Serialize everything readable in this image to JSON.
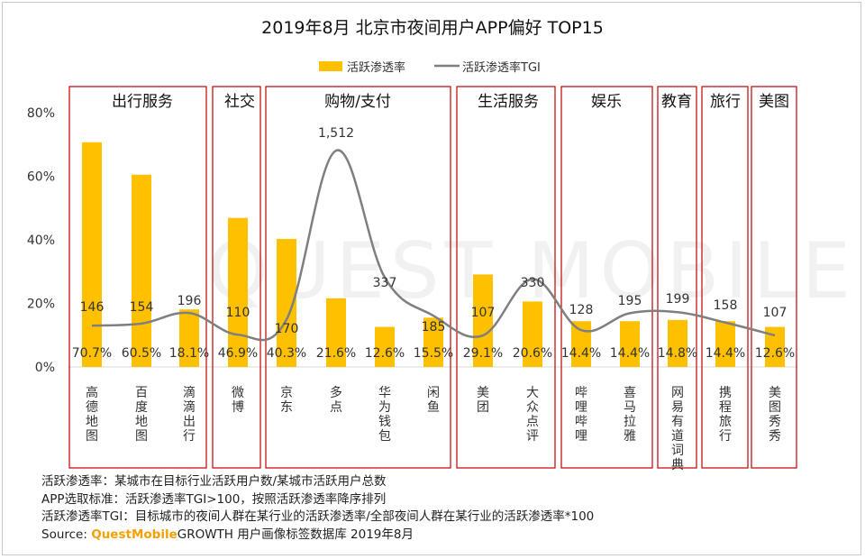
{
  "chart_data": {
    "type": "bar+line",
    "title": "2019年8月 北京市夜间用户APP偏好 TOP15",
    "legend": [
      "活跃渗透率",
      "活跃渗透率TGI"
    ],
    "legend_position": "top-center",
    "y_axis": {
      "ticks": [
        "0%",
        "20%",
        "40%",
        "60%",
        "80%"
      ],
      "ylim": [
        0,
        80
      ],
      "unit": "%"
    },
    "grid": false,
    "colors": {
      "bar": "#ffc000",
      "line": "#7f7f7f",
      "group_border": "#c00000"
    },
    "groups": [
      {
        "name": "出行服务",
        "apps": [
          "高德地图",
          "百度地图",
          "滴滴出行"
        ]
      },
      {
        "name": "社交",
        "apps": [
          "微博"
        ]
      },
      {
        "name": "购物/支付",
        "apps": [
          "京东",
          "多点",
          "华为钱包",
          "闲鱼"
        ]
      },
      {
        "name": "生活服务",
        "apps": [
          "美团",
          "大众点评"
        ]
      },
      {
        "name": "娱乐",
        "apps": [
          "哔哩哔哩",
          "喜马拉雅"
        ]
      },
      {
        "name": "教育",
        "apps": [
          "网易有道词典"
        ]
      },
      {
        "name": "旅行",
        "apps": [
          "携程旅行"
        ]
      },
      {
        "name": "美图",
        "apps": [
          "美图秀秀"
        ]
      }
    ],
    "categories": [
      "高德地图",
      "百度地图",
      "滴滴出行",
      "微博",
      "京东",
      "多点",
      "华为钱包",
      "闲鱼",
      "美团",
      "大众点评",
      "哔哩哔哩",
      "喜马拉雅",
      "网易有道词典",
      "携程旅行",
      "美图秀秀"
    ],
    "series": [
      {
        "name": "活跃渗透率",
        "type": "bar",
        "values": [
          70.7,
          60.5,
          18.1,
          46.9,
          40.3,
          21.6,
          12.6,
          15.5,
          29.1,
          20.6,
          14.4,
          14.4,
          14.8,
          14.4,
          12.6
        ],
        "labels": [
          "70.7%",
          "60.5%",
          "18.1%",
          "46.9%",
          "40.3%",
          "21.6%",
          "12.6%",
          "15.5%",
          "29.1%",
          "20.6%",
          "14.4%",
          "14.4%",
          "14.8%",
          "14.4%",
          "12.6%"
        ]
      },
      {
        "name": "活跃渗透率TGI",
        "type": "line",
        "values": [
          146,
          154,
          196,
          110,
          170,
          1512,
          337,
          185,
          107,
          330,
          128,
          195,
          199,
          158,
          107
        ],
        "labels": [
          "146",
          "154",
          "196",
          "110",
          "170",
          "1,512",
          "337",
          "185",
          "107",
          "330",
          "128",
          "195",
          "199",
          "158",
          "107"
        ]
      }
    ]
  },
  "watermark": "QUEST MOBILE",
  "notes": {
    "line1": "活跃渗透率：某城市在目标行业活跃用户数/某城市活跃用户总数",
    "line2": "APP选取标准：活跃渗透率TGI>100，按照活跃渗透率降序排列",
    "line3": "活跃渗透率TGI：目标城市的夜间人群在某行业的活跃渗透率/全部夜间人群在某行业的活跃渗透率*100",
    "source_label": "Source:",
    "source_brand": "QuestMobile",
    "source_rest": "GROWTH 用户画像标签数据库 2019年8月"
  }
}
